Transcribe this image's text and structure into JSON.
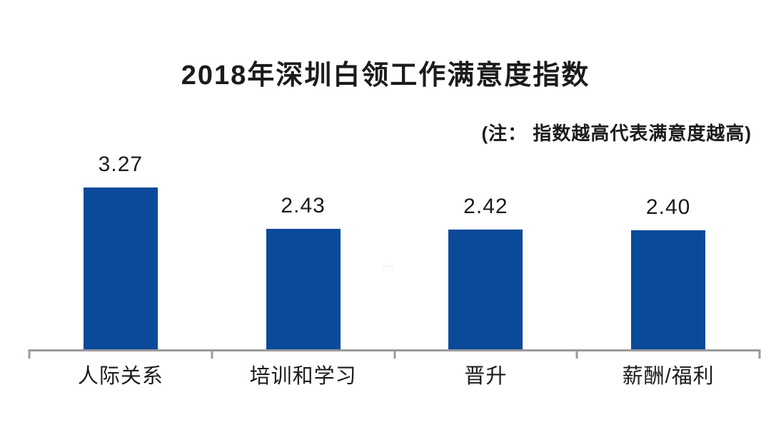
{
  "page": {
    "title": "2018年深圳白领工作满意度指数",
    "note": "(注： 指数越高代表满意度越高)",
    "watermark": "····"
  },
  "chart_data": {
    "type": "bar",
    "title": "2018年深圳白领工作满意度指数",
    "annotation": "(注： 指数越高代表满意度越高)",
    "categories": [
      "人际关系",
      "培训和学习",
      "晋升",
      "薪酬/福利"
    ],
    "values": [
      3.27,
      2.43,
      2.42,
      2.4
    ],
    "value_labels": [
      "3.27",
      "2.43",
      "2.42",
      "2.40"
    ],
    "xlabel": "",
    "ylabel": "",
    "ylim": [
      0,
      3.6
    ],
    "grid": false,
    "legend": false,
    "bar_color": "#0B4A9B",
    "axis_color": "#9B9B9B",
    "text_color": "#1B1B1B",
    "background_color": "#FFFFFF"
  }
}
